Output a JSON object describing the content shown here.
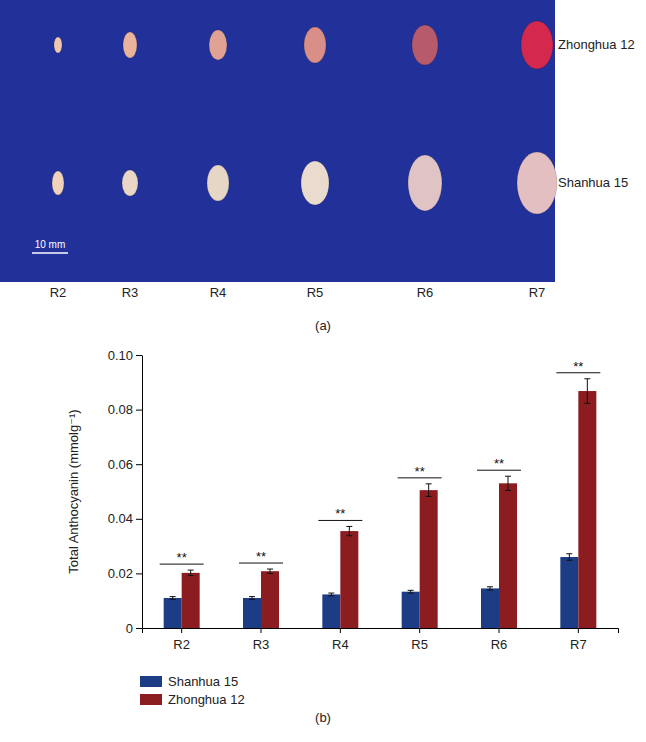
{
  "figure": {
    "panel_a": {
      "label": "(a)",
      "rows": [
        "Zhonghua 12",
        "Shanhua 15"
      ],
      "stages": [
        "R2",
        "R3",
        "R4",
        "R5",
        "R6",
        "R7"
      ],
      "scale_bar": "10 mm"
    },
    "panel_b_label": "(b)"
  },
  "chart_data": {
    "type": "bar",
    "y_label": "Total Anthocyanin (mmolg⁻¹)",
    "categories": [
      "R2",
      "R3",
      "R4",
      "R5",
      "R6",
      "R7"
    ],
    "series": [
      {
        "name": "Shanhua 15",
        "color": "#1c3c86",
        "values": [
          0.011,
          0.011,
          0.0123,
          0.0133,
          0.0145,
          0.026
        ],
        "errors": [
          0.0005,
          0.0005,
          0.0005,
          0.0005,
          0.0006,
          0.0012
        ]
      },
      {
        "name": "Zhonghua 12",
        "color": "#8b1c1f",
        "values": [
          0.0202,
          0.0208,
          0.0355,
          0.0505,
          0.053,
          0.0868
        ],
        "errors": [
          0.001,
          0.0008,
          0.0017,
          0.0023,
          0.0026,
          0.0045
        ]
      }
    ],
    "significance": [
      "**",
      "**",
      "**",
      "**",
      "**",
      "**"
    ],
    "ylim": [
      0,
      0.1
    ],
    "yticks": [
      0,
      0.02,
      0.04,
      0.06,
      0.08,
      {
        "value": 0.1,
        "label": "0.10"
      }
    ],
    "grid": false,
    "legend": "bottom-left"
  }
}
